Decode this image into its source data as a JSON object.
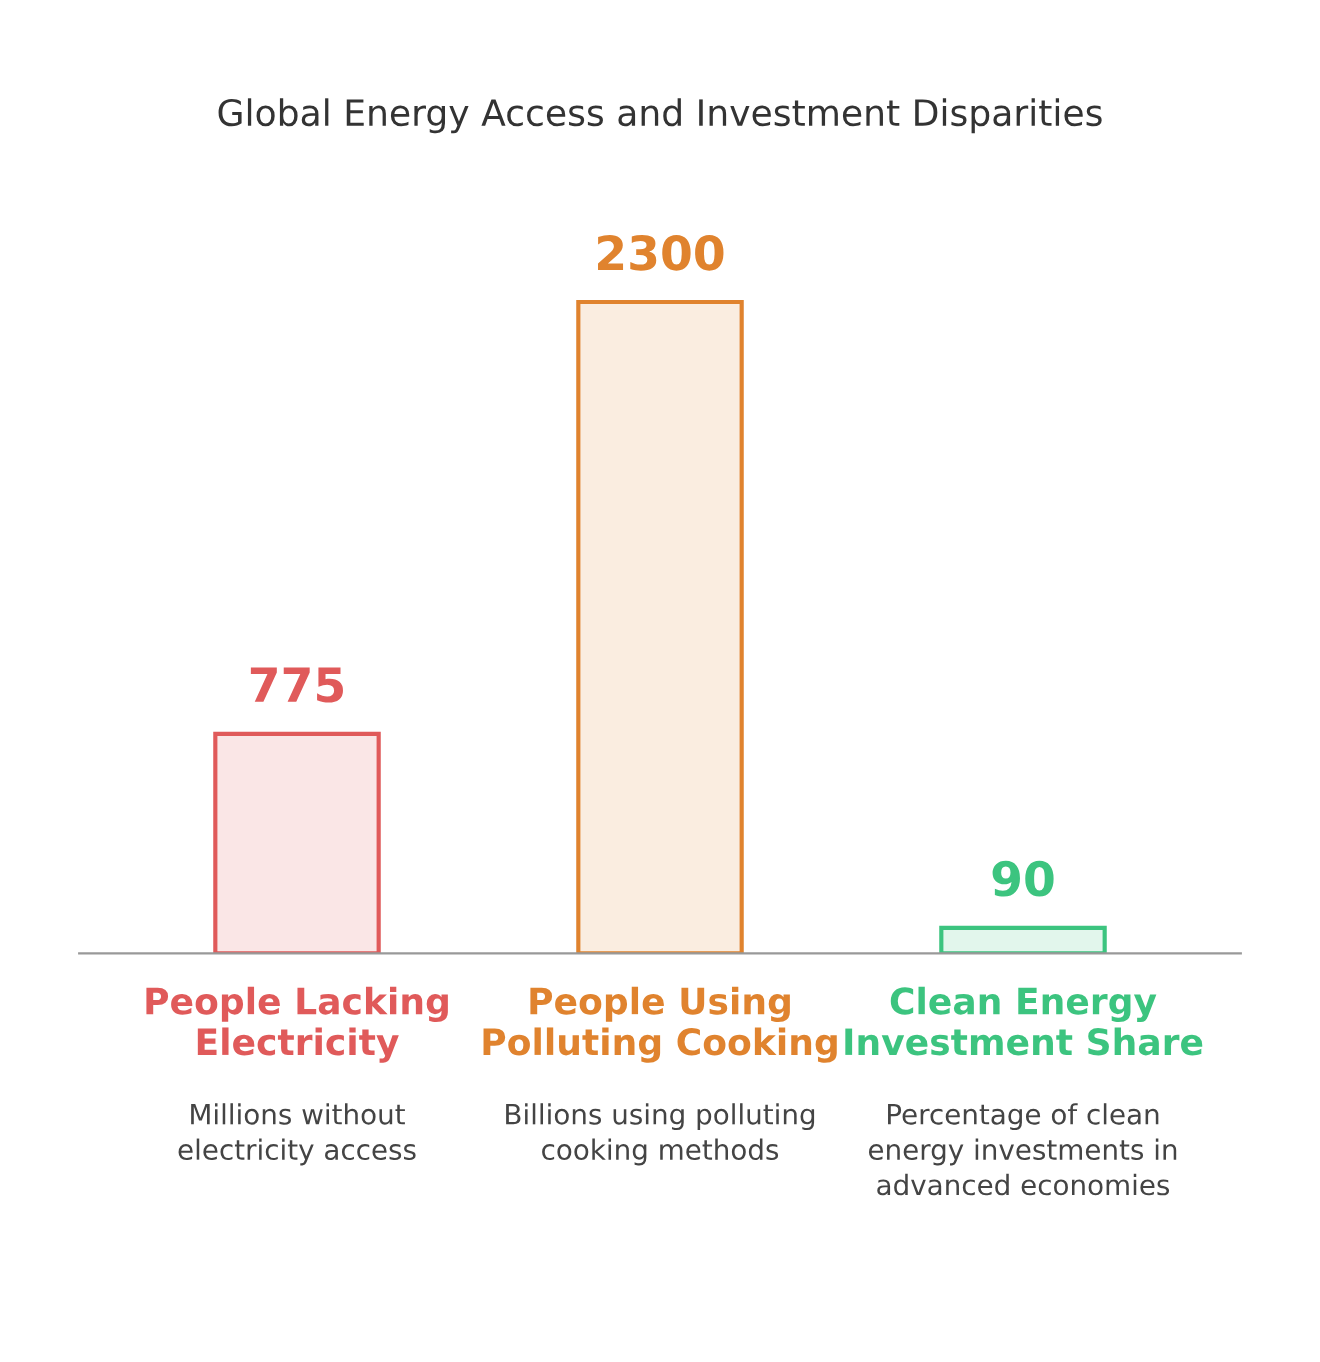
{
  "chart_data": {
    "type": "bar",
    "title": "Global Energy Access and Investment Disparities",
    "categories": [
      "People Lacking\nElectricity",
      "People Using\nPolluting Cooking",
      "Clean Energy\nInvestment Share"
    ],
    "values": [
      775,
      2300,
      90
    ],
    "colors": [
      "#e05a5a",
      "#e0832e",
      "#3cc47f"
    ],
    "data_labels": true,
    "annotations": [
      "Millions without\nelectricity access",
      "Billions using polluting\ncooking methods",
      "Percentage of clean\nenergy investments in\nadvanced economies"
    ]
  }
}
